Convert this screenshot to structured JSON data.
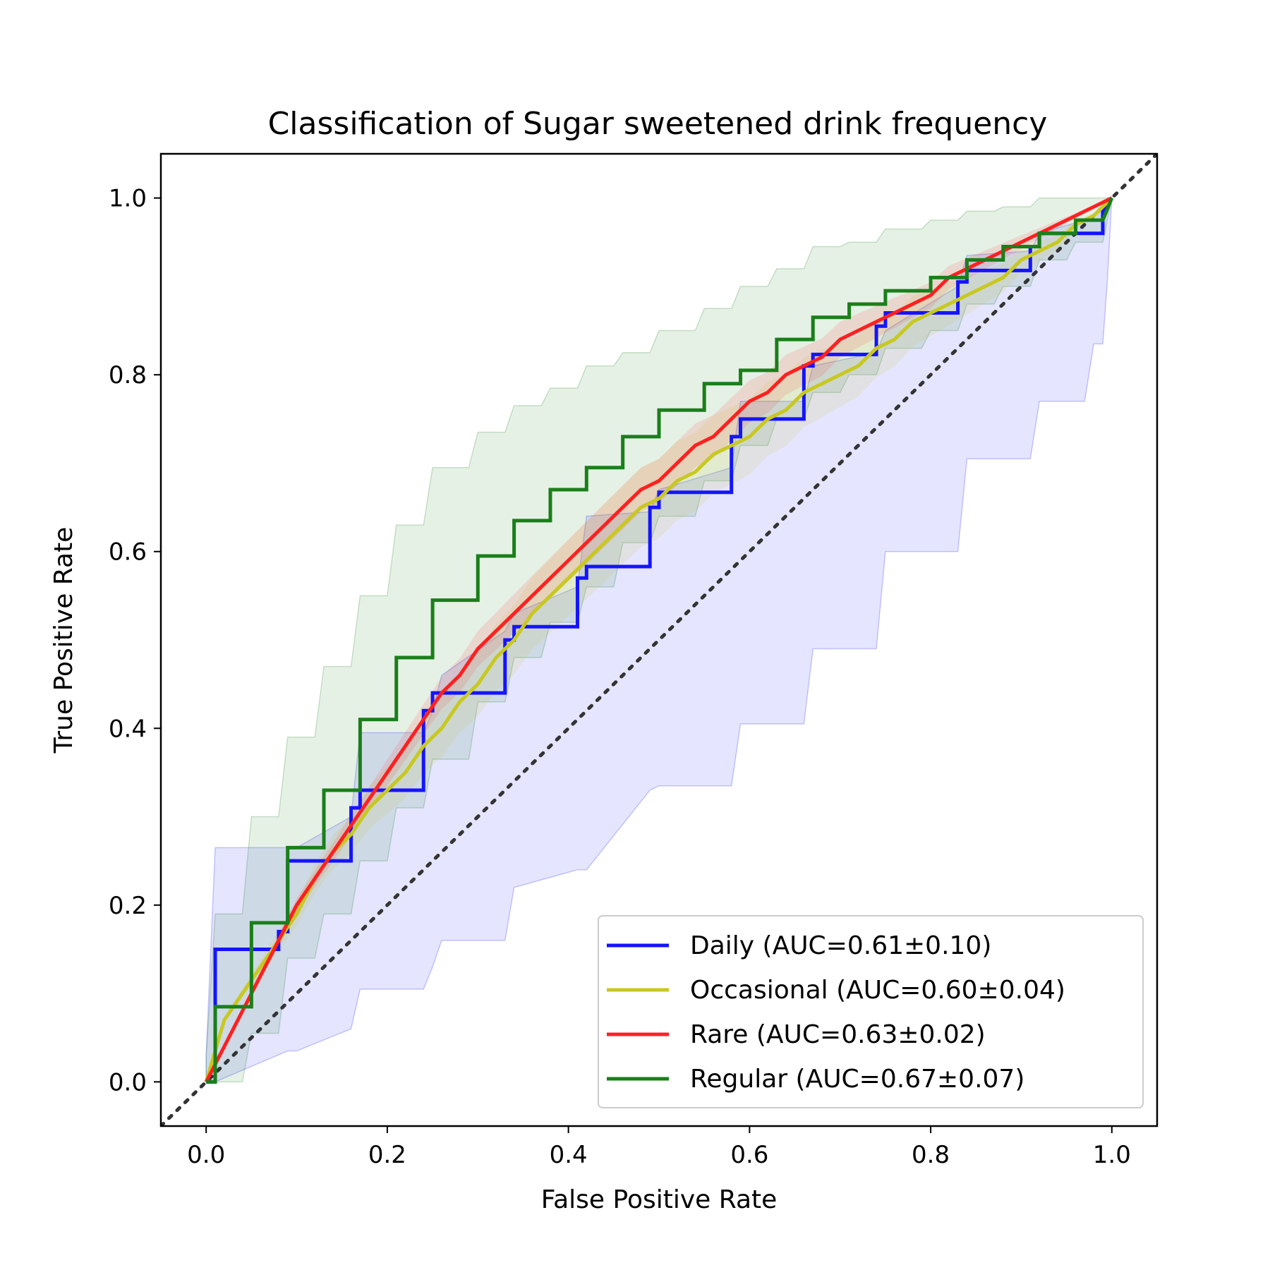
{
  "chart_data": {
    "type": "line",
    "title": "Classification of Sugar sweetened drink frequency",
    "xlabel": "False Positive Rate",
    "ylabel": "True Positive Rate",
    "xlim": [
      -0.05,
      1.05
    ],
    "ylim": [
      -0.05,
      1.05
    ],
    "xticks": [
      "0.0",
      "0.2",
      "0.4",
      "0.6",
      "0.8",
      "1.0"
    ],
    "yticks": [
      "0.0",
      "0.2",
      "0.4",
      "0.6",
      "0.8",
      "1.0"
    ],
    "grid": false,
    "legend_position": "lower-right",
    "diagonal": {
      "from": [
        0,
        0
      ],
      "to": [
        1,
        1
      ],
      "style": "dotted",
      "color": "#333333"
    },
    "series": [
      {
        "name": "Daily (AUC=0.61±0.10)",
        "color": "#1414ff",
        "step": true,
        "x": [
          0,
          0.01,
          0.01,
          0.08,
          0.08,
          0.09,
          0.09,
          0.16,
          0.16,
          0.17,
          0.17,
          0.24,
          0.24,
          0.25,
          0.25,
          0.33,
          0.33,
          0.34,
          0.34,
          0.41,
          0.41,
          0.42,
          0.42,
          0.49,
          0.49,
          0.5,
          0.5,
          0.58,
          0.58,
          0.59,
          0.59,
          0.66,
          0.66,
          0.67,
          0.67,
          0.74,
          0.74,
          0.75,
          0.75,
          0.83,
          0.83,
          0.84,
          0.84,
          0.91,
          0.91,
          0.92,
          0.92,
          0.99,
          0.99,
          1.0
        ],
        "y": [
          0,
          0,
          0.15,
          0.15,
          0.17,
          0.17,
          0.25,
          0.25,
          0.31,
          0.31,
          0.33,
          0.33,
          0.42,
          0.42,
          0.44,
          0.44,
          0.5,
          0.5,
          0.515,
          0.515,
          0.57,
          0.57,
          0.583,
          0.583,
          0.65,
          0.65,
          0.667,
          0.667,
          0.73,
          0.73,
          0.75,
          0.75,
          0.81,
          0.81,
          0.823,
          0.823,
          0.855,
          0.855,
          0.87,
          0.87,
          0.905,
          0.905,
          0.918,
          0.918,
          0.945,
          0.945,
          0.96,
          0.96,
          0.985,
          1.0
        ],
        "band_upper": [
          0.03,
          0.265,
          0.265,
          0.265,
          0.3,
          0.395,
          0.395,
          0.42,
          0.46,
          0.51,
          0.53,
          0.56,
          0.64,
          0.645,
          0.67,
          0.695,
          0.77,
          0.77,
          0.81,
          0.825,
          0.85,
          0.9,
          0.935,
          0.94,
          0.96,
          0.975,
          0.98,
          0.99,
          1.0,
          1.0
        ],
        "band_lower": [
          0,
          0,
          0.035,
          0.035,
          0.06,
          0.105,
          0.105,
          0.13,
          0.16,
          0.16,
          0.22,
          0.24,
          0.24,
          0.33,
          0.335,
          0.335,
          0.405,
          0.405,
          0.49,
          0.49,
          0.6,
          0.6,
          0.705,
          0.705,
          0.77,
          0.77,
          0.835,
          0.835,
          0.905,
          1.0
        ],
        "band_x": [
          0,
          0.01,
          0.09,
          0.1,
          0.16,
          0.17,
          0.24,
          0.25,
          0.26,
          0.33,
          0.34,
          0.41,
          0.42,
          0.49,
          0.5,
          0.58,
          0.59,
          0.66,
          0.67,
          0.74,
          0.75,
          0.83,
          0.84,
          0.91,
          0.92,
          0.97,
          0.98,
          0.99,
          0.995,
          1.0
        ]
      },
      {
        "name": "Occasional (AUC=0.60±0.04)",
        "color": "#c8c820",
        "step": false,
        "x": [
          0,
          0.02,
          0.04,
          0.06,
          0.08,
          0.1,
          0.12,
          0.14,
          0.16,
          0.18,
          0.2,
          0.22,
          0.24,
          0.26,
          0.28,
          0.3,
          0.32,
          0.34,
          0.36,
          0.38,
          0.4,
          0.42,
          0.44,
          0.46,
          0.48,
          0.5,
          0.52,
          0.54,
          0.56,
          0.58,
          0.6,
          0.62,
          0.64,
          0.66,
          0.68,
          0.7,
          0.72,
          0.74,
          0.76,
          0.78,
          0.8,
          0.82,
          0.84,
          0.86,
          0.88,
          0.9,
          0.92,
          0.94,
          0.96,
          0.98,
          1.0
        ],
        "y": [
          0,
          0.07,
          0.1,
          0.13,
          0.16,
          0.19,
          0.23,
          0.26,
          0.28,
          0.31,
          0.33,
          0.35,
          0.38,
          0.4,
          0.43,
          0.45,
          0.48,
          0.5,
          0.53,
          0.55,
          0.57,
          0.59,
          0.61,
          0.63,
          0.65,
          0.66,
          0.68,
          0.69,
          0.71,
          0.72,
          0.73,
          0.75,
          0.76,
          0.78,
          0.79,
          0.8,
          0.81,
          0.83,
          0.84,
          0.86,
          0.87,
          0.88,
          0.89,
          0.9,
          0.91,
          0.93,
          0.94,
          0.95,
          0.97,
          0.98,
          1.0
        ]
      },
      {
        "name": "Rare (AUC=0.63±0.02)",
        "color": "#ff2020",
        "step": false,
        "x": [
          0,
          0.02,
          0.04,
          0.06,
          0.08,
          0.1,
          0.12,
          0.14,
          0.16,
          0.18,
          0.2,
          0.22,
          0.24,
          0.26,
          0.28,
          0.3,
          0.32,
          0.34,
          0.36,
          0.38,
          0.4,
          0.42,
          0.44,
          0.46,
          0.48,
          0.5,
          0.52,
          0.54,
          0.56,
          0.58,
          0.6,
          0.62,
          0.64,
          0.66,
          0.68,
          0.7,
          0.72,
          0.74,
          0.76,
          0.78,
          0.8,
          0.82,
          0.84,
          0.86,
          0.88,
          0.9,
          0.92,
          0.94,
          0.96,
          0.98,
          1.0
        ],
        "y": [
          0,
          0.04,
          0.08,
          0.12,
          0.16,
          0.2,
          0.23,
          0.26,
          0.29,
          0.32,
          0.35,
          0.38,
          0.41,
          0.44,
          0.46,
          0.49,
          0.51,
          0.53,
          0.55,
          0.57,
          0.59,
          0.61,
          0.63,
          0.65,
          0.67,
          0.68,
          0.7,
          0.72,
          0.73,
          0.75,
          0.77,
          0.78,
          0.8,
          0.81,
          0.82,
          0.84,
          0.85,
          0.86,
          0.87,
          0.88,
          0.89,
          0.91,
          0.92,
          0.93,
          0.94,
          0.95,
          0.96,
          0.97,
          0.98,
          0.99,
          1.0
        ]
      },
      {
        "name": "Regular (AUC=0.67±0.07)",
        "color": "#1a7f1a",
        "step": true,
        "x": [
          0,
          0.01,
          0.01,
          0.04,
          0.04,
          0.05,
          0.05,
          0.08,
          0.08,
          0.09,
          0.09,
          0.12,
          0.12,
          0.13,
          0.13,
          0.16,
          0.16,
          0.17,
          0.17,
          0.2,
          0.2,
          0.21,
          0.21,
          0.24,
          0.24,
          0.25,
          0.25,
          0.29,
          0.29,
          0.3,
          0.3,
          0.33,
          0.33,
          0.34,
          0.34,
          0.37,
          0.37,
          0.38,
          0.38,
          0.41,
          0.41,
          0.42,
          0.42,
          0.45,
          0.45,
          0.46,
          0.46,
          0.49,
          0.49,
          0.5,
          0.5,
          0.54,
          0.54,
          0.55,
          0.55,
          0.58,
          0.58,
          0.59,
          0.59,
          0.62,
          0.62,
          0.63,
          0.63,
          0.66,
          0.66,
          0.67,
          0.67,
          0.7,
          0.7,
          0.71,
          0.71,
          0.74,
          0.74,
          0.75,
          0.75,
          0.79,
          0.79,
          0.8,
          0.8,
          0.83,
          0.83,
          0.84,
          0.84,
          0.87,
          0.87,
          0.88,
          0.88,
          0.91,
          0.91,
          0.92,
          0.92,
          0.95,
          0.95,
          0.96,
          0.96,
          0.99,
          0.99,
          1.0
        ],
        "y": [
          0,
          0,
          0.085,
          0.085,
          0.085,
          0.085,
          0.18,
          0.18,
          0.18,
          0.18,
          0.265,
          0.265,
          0.265,
          0.265,
          0.33,
          0.33,
          0.33,
          0.33,
          0.41,
          0.41,
          0.41,
          0.41,
          0.48,
          0.48,
          0.48,
          0.48,
          0.545,
          0.545,
          0.545,
          0.545,
          0.595,
          0.595,
          0.595,
          0.595,
          0.635,
          0.635,
          0.635,
          0.635,
          0.67,
          0.67,
          0.67,
          0.67,
          0.695,
          0.695,
          0.695,
          0.695,
          0.73,
          0.73,
          0.73,
          0.73,
          0.76,
          0.76,
          0.76,
          0.76,
          0.79,
          0.79,
          0.79,
          0.79,
          0.805,
          0.805,
          0.805,
          0.805,
          0.84,
          0.84,
          0.84,
          0.84,
          0.865,
          0.865,
          0.865,
          0.865,
          0.88,
          0.88,
          0.88,
          0.88,
          0.895,
          0.895,
          0.895,
          0.895,
          0.91,
          0.91,
          0.91,
          0.91,
          0.93,
          0.93,
          0.93,
          0.93,
          0.945,
          0.945,
          0.945,
          0.945,
          0.96,
          0.96,
          0.96,
          0.96,
          0.975,
          0.975,
          0.975,
          1.0
        ],
        "band_x": [
          0,
          0.01,
          0.04,
          0.05,
          0.08,
          0.09,
          0.12,
          0.13,
          0.16,
          0.17,
          0.2,
          0.21,
          0.24,
          0.25,
          0.29,
          0.3,
          0.33,
          0.34,
          0.37,
          0.38,
          0.41,
          0.42,
          0.45,
          0.46,
          0.49,
          0.5,
          0.54,
          0.55,
          0.58,
          0.59,
          0.62,
          0.63,
          0.66,
          0.67,
          0.7,
          0.71,
          0.74,
          0.75,
          0.79,
          0.8,
          0.83,
          0.84,
          0.87,
          0.88,
          0.91,
          0.92,
          0.95,
          0.96,
          0.99,
          1.0
        ],
        "band_upper": [
          0.03,
          0.19,
          0.19,
          0.3,
          0.3,
          0.39,
          0.39,
          0.47,
          0.47,
          0.55,
          0.55,
          0.63,
          0.63,
          0.695,
          0.695,
          0.735,
          0.735,
          0.765,
          0.765,
          0.785,
          0.785,
          0.81,
          0.81,
          0.825,
          0.825,
          0.85,
          0.85,
          0.875,
          0.875,
          0.9,
          0.9,
          0.92,
          0.92,
          0.945,
          0.945,
          0.95,
          0.95,
          0.965,
          0.965,
          0.975,
          0.975,
          0.985,
          0.985,
          0.99,
          0.99,
          1.0,
          1.0,
          1.0,
          1.0,
          1.0
        ],
        "band_lower": [
          0,
          0,
          0,
          0.055,
          0.055,
          0.14,
          0.14,
          0.19,
          0.19,
          0.25,
          0.25,
          0.31,
          0.31,
          0.365,
          0.365,
          0.43,
          0.43,
          0.48,
          0.48,
          0.52,
          0.52,
          0.56,
          0.56,
          0.61,
          0.61,
          0.64,
          0.64,
          0.68,
          0.68,
          0.72,
          0.72,
          0.75,
          0.75,
          0.78,
          0.78,
          0.8,
          0.8,
          0.83,
          0.83,
          0.85,
          0.85,
          0.88,
          0.88,
          0.9,
          0.9,
          0.93,
          0.93,
          0.95,
          0.95,
          1.0
        ]
      }
    ]
  }
}
